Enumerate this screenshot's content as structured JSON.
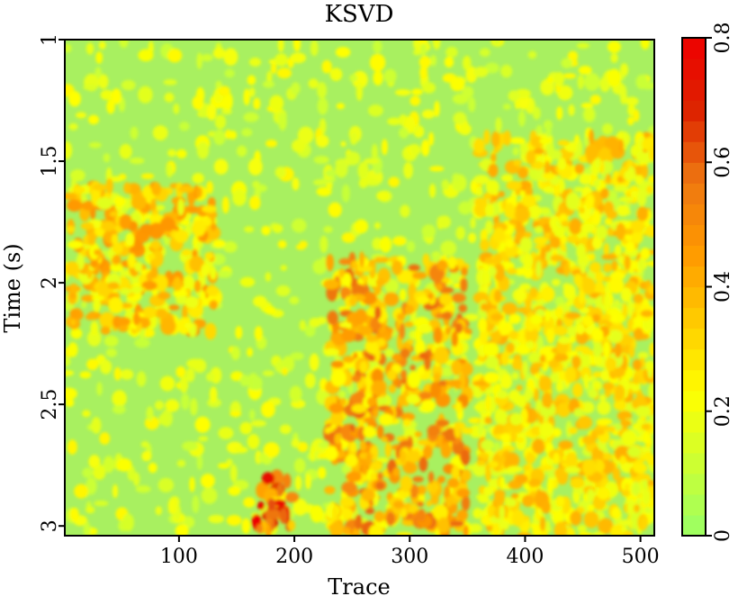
{
  "chart_data": {
    "type": "heatmap",
    "title": "KSVD",
    "xlabel": "Trace",
    "ylabel": "Time (s)",
    "xlim": [
      1,
      512
    ],
    "ylim": [
      1,
      3.04
    ],
    "y_inverted": true,
    "x_ticks": [
      "100",
      "200",
      "300",
      "400",
      "500"
    ],
    "y_ticks": [
      "1",
      "1.5",
      "2",
      "2.5",
      "3"
    ],
    "colorbar": {
      "range": [
        0,
        0.8
      ],
      "ticks": [
        "0",
        "0.2",
        "0.4",
        "0.6",
        "0.8"
      ],
      "colormap": [
        "#99ff66",
        "#ccff33",
        "#ffff00",
        "#ffcc00",
        "#ff9900",
        "#ee7711",
        "#dd2200",
        "#ee0000"
      ]
    },
    "features": [
      {
        "trace_range": [
          230,
          350
        ],
        "time_range": [
          1.9,
          3.04
        ],
        "amplitude": 0.5
      },
      {
        "trace_range": [
          165,
          200
        ],
        "time_range": [
          2.8,
          3.04
        ],
        "amplitude": 0.75
      },
      {
        "trace_range": [
          5,
          130
        ],
        "time_range": [
          1.6,
          2.2
        ],
        "amplitude": 0.4
      },
      {
        "trace_range": [
          360,
          512
        ],
        "time_range": [
          1.4,
          3.04
        ],
        "amplitude": 0.35
      }
    ]
  }
}
